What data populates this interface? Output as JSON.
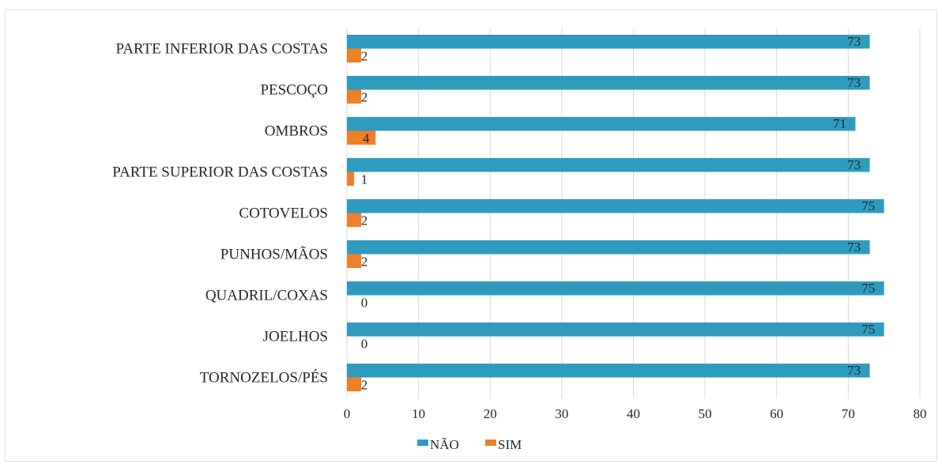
{
  "chart_data": {
    "type": "bar",
    "orientation": "horizontal",
    "categories": [
      "PARTE INFERIOR DAS COSTAS",
      "PESCOÇO",
      "OMBROS",
      "PARTE SUPERIOR DAS COSTAS",
      "COTOVELOS",
      "PUNHOS/MÃOS",
      "QUADRIL/COXAS",
      "JOELHOS",
      "TORNOZELOS/PÉS"
    ],
    "series": [
      {
        "name": "NÃO",
        "color": "#2e9bbf",
        "values": [
          73,
          73,
          71,
          73,
          75,
          73,
          75,
          75,
          73
        ]
      },
      {
        "name": "SIM",
        "color": "#f07f2a",
        "values": [
          2,
          2,
          4,
          1,
          2,
          2,
          0,
          0,
          2
        ]
      }
    ],
    "xlim": [
      0,
      80
    ],
    "xticks": [
      "0",
      "10",
      "20",
      "30",
      "40",
      "50",
      "60",
      "70",
      "80"
    ],
    "grid": "vertical",
    "legend": "bottom",
    "data_labels": true
  }
}
